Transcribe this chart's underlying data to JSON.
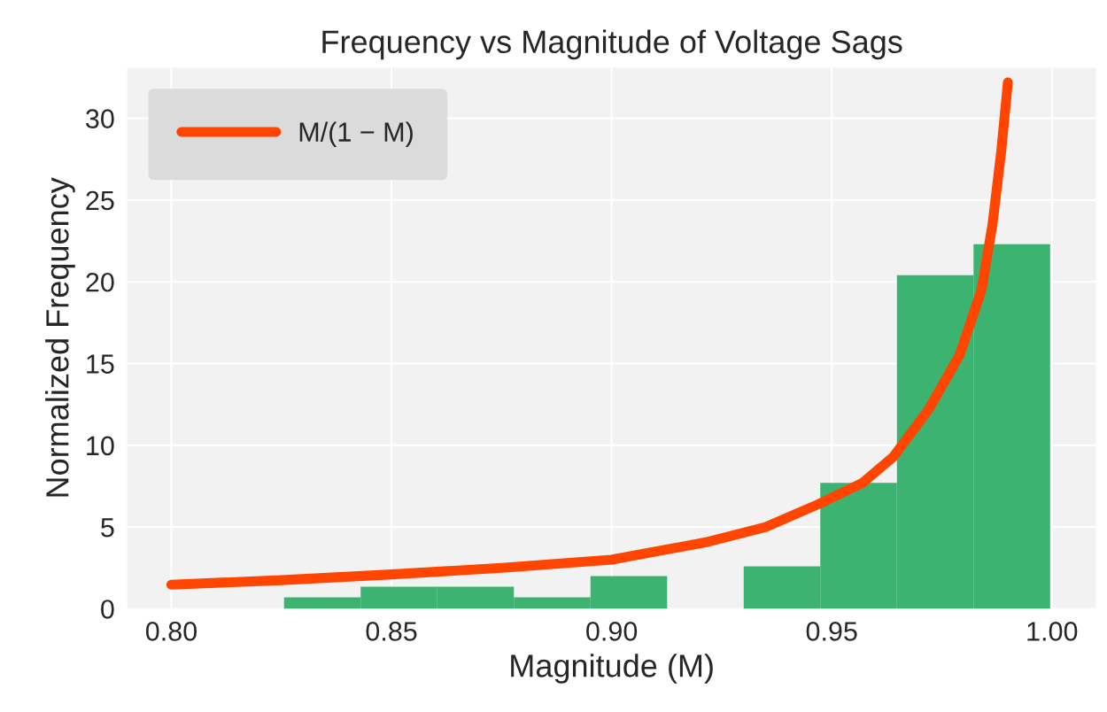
{
  "chart_data": [
    {
      "type": "histogram",
      "title": "Frequency vs Magnitude of Voltage Sags",
      "xlabel": "Magnitude (M)",
      "ylabel": "Normalized Frequency",
      "bins": [
        0.8256,
        0.843,
        0.8604,
        0.8778,
        0.8952,
        0.9126,
        0.93,
        0.9474,
        0.9648,
        0.9822,
        0.9996
      ],
      "values": [
        0.7,
        1.35,
        1.35,
        0.7,
        2.0,
        0,
        2.6,
        7.7,
        20.4,
        22.3
      ],
      "color": "#3cb371",
      "series": [
        {
          "type": "line",
          "name": "M/(1 − M)",
          "color": "#ff4500",
          "x": [
            0.8,
            0.825,
            0.85,
            0.875,
            0.9,
            0.922,
            0.935,
            0.947,
            0.957,
            0.964,
            0.972,
            0.979,
            0.984,
            0.9865,
            0.9885,
            0.99
          ],
          "values": [
            1.47,
            1.75,
            2.1,
            2.5,
            3.0,
            4.1,
            5.0,
            6.4,
            7.7,
            9.3,
            12.2,
            15.5,
            19.5,
            23.5,
            28.0,
            32.2
          ]
        }
      ],
      "xlim": [
        0.79,
        1.01
      ],
      "ylim": [
        0,
        33.1
      ],
      "xticks": [
        {
          "value": 0.8,
          "label": "0.80"
        },
        {
          "value": 0.85,
          "label": "0.85"
        },
        {
          "value": 0.9,
          "label": "0.90"
        },
        {
          "value": 0.95,
          "label": "0.95"
        },
        {
          "value": 1.0,
          "label": "1.00"
        }
      ],
      "yticks": [
        0,
        5,
        10,
        15,
        20,
        25,
        30
      ],
      "grid": true,
      "legend": "top left"
    }
  ]
}
